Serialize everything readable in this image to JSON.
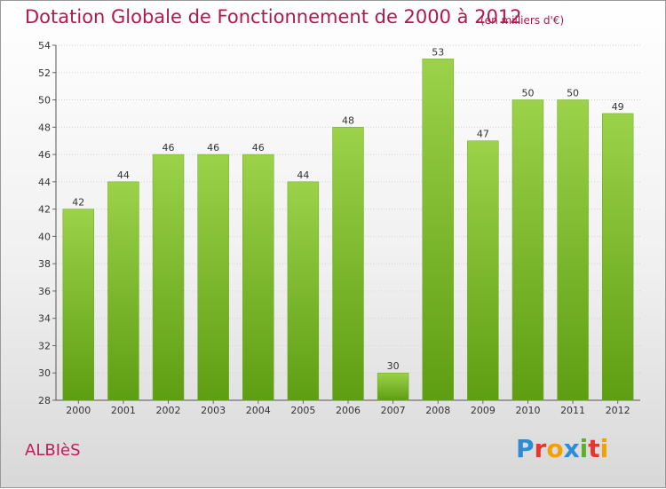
{
  "header": {
    "title": "Dotation Globale de Fonctionnement de 2000 à 2012",
    "unit": "(en milliers d'€)"
  },
  "footer": {
    "commune": "ALBIèS",
    "logo_text": "Proxiti",
    "logo_letters": [
      {
        "ch": "P",
        "color": "#2e8bd6"
      },
      {
        "ch": "r",
        "color": "#e8342c"
      },
      {
        "ch": "o",
        "color": "#f1a200"
      },
      {
        "ch": "x",
        "color": "#2e8bd6"
      },
      {
        "ch": "i",
        "color": "#5fae2e"
      },
      {
        "ch": "t",
        "color": "#e8342c"
      },
      {
        "ch": "i",
        "color": "#f1a200"
      }
    ]
  },
  "chart_data": {
    "type": "bar",
    "categories": [
      "2000",
      "2001",
      "2002",
      "2003",
      "2004",
      "2005",
      "2006",
      "2007",
      "2008",
      "2009",
      "2010",
      "2011",
      "2012"
    ],
    "values": [
      42,
      44,
      46,
      46,
      46,
      44,
      48,
      30,
      53,
      47,
      50,
      50,
      49
    ],
    "ylim": [
      28,
      54
    ],
    "yticks": [
      28,
      30,
      32,
      34,
      36,
      38,
      40,
      42,
      44,
      46,
      48,
      50,
      52,
      54
    ],
    "grid": true,
    "bar_color": "#7fbf2a"
  }
}
